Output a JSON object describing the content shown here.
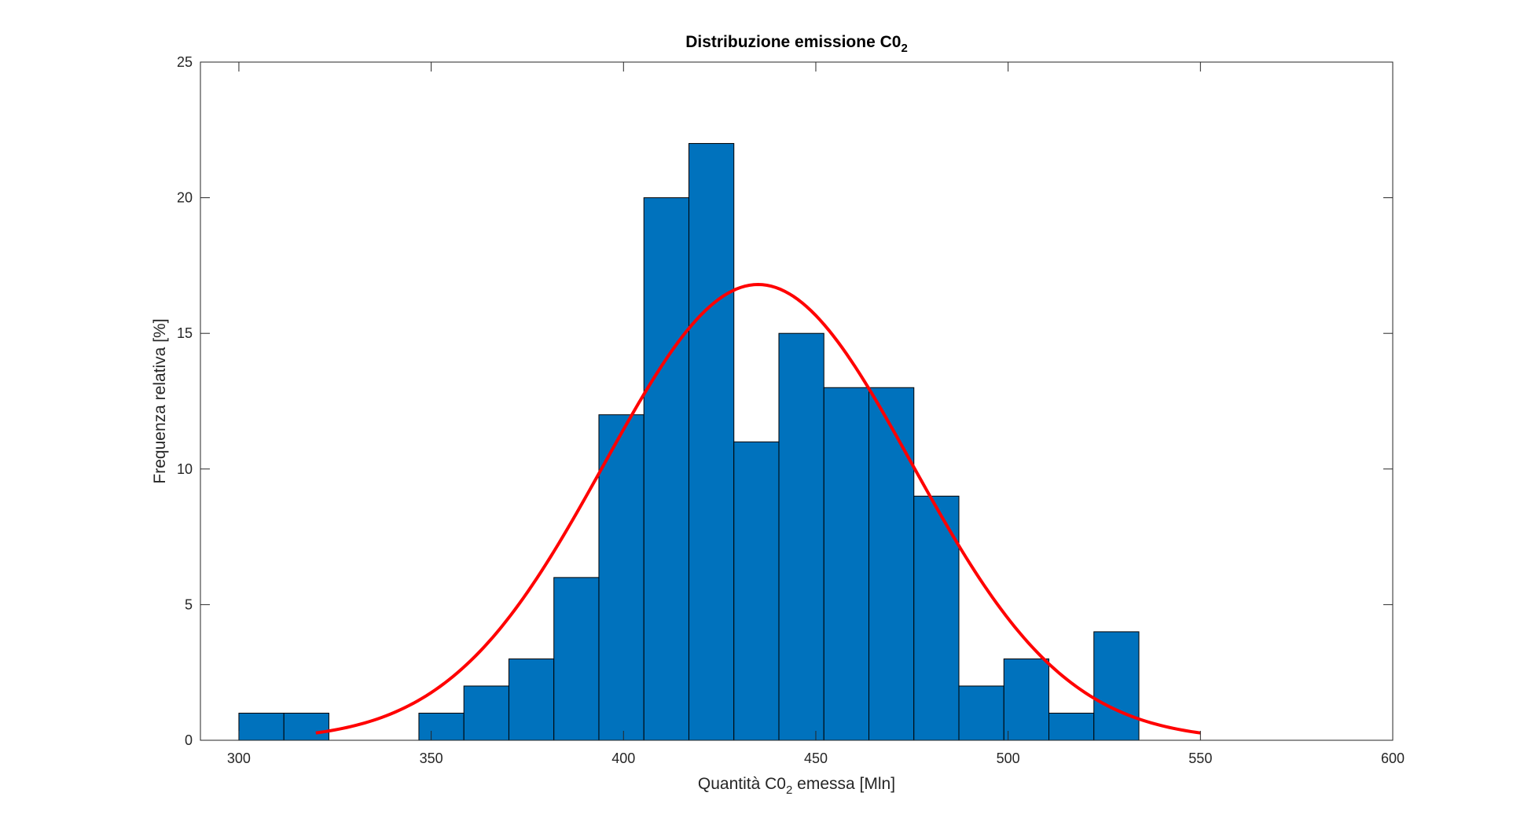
{
  "chart_data": {
    "type": "bar",
    "title": "Distribuzione emissione C0",
    "title_subscript": "2",
    "xlabel_prefix": "Quantità C0",
    "xlabel_subscript": "2",
    "xlabel_suffix": " emessa [Mln]",
    "ylabel": "Frequenza relativa [%]",
    "xlim": [
      290,
      600
    ],
    "ylim": [
      0,
      25
    ],
    "xticks": [
      300,
      350,
      400,
      450,
      500,
      550,
      600
    ],
    "yticks": [
      0,
      5,
      10,
      15,
      20,
      25
    ],
    "bin_edges": [
      300,
      311.7,
      323.4,
      335.1,
      346.8,
      358.5,
      370.2,
      381.9,
      393.6,
      405.3,
      417.0,
      428.7,
      440.4,
      452.1,
      463.8,
      475.5,
      487.2,
      498.9,
      510.6,
      522.3,
      534.0
    ],
    "values": [
      1,
      1,
      0,
      0,
      1,
      2,
      3,
      6,
      12,
      20,
      22,
      11,
      15,
      13,
      13,
      9,
      2,
      3,
      1,
      4
    ],
    "bar_color": "#0072BD",
    "fit_curve": {
      "type": "normal",
      "color": "#FF0000",
      "mean": 435,
      "peak": 16.8,
      "std": 40,
      "x_range": [
        320,
        550
      ]
    },
    "grid": false,
    "box": true
  }
}
